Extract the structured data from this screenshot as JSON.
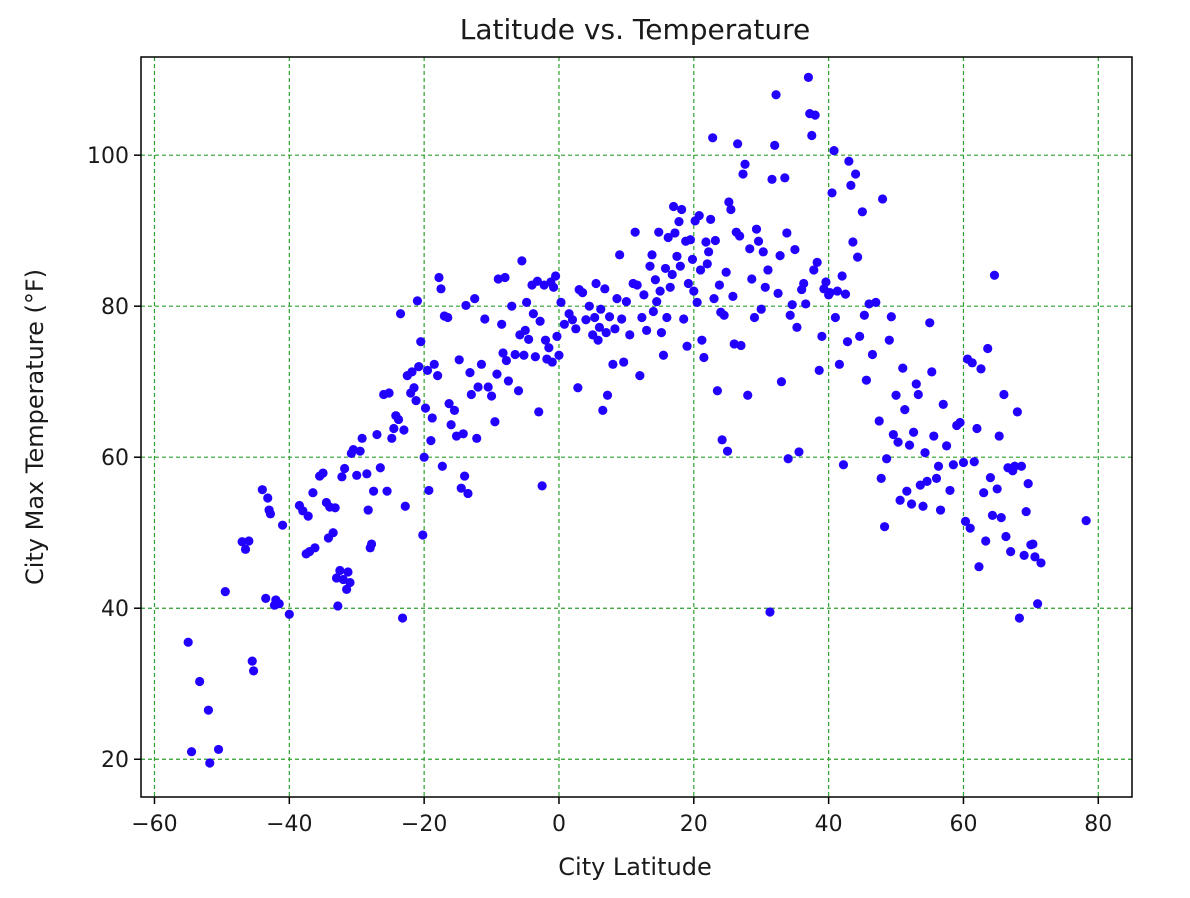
{
  "chart_data": {
    "type": "scatter",
    "title": "Latitude vs. Temperature",
    "xlabel": "City Latitude",
    "ylabel": "City Max Temperature (°F)",
    "xlim": [
      -62,
      85
    ],
    "ylim": [
      15,
      113
    ],
    "xticks": [
      -60,
      -40,
      -20,
      0,
      20,
      40,
      60,
      80
    ],
    "yticks": [
      20,
      40,
      60,
      80,
      100
    ],
    "xtick_labels": [
      "−60",
      "−40",
      "−20",
      "0",
      "20",
      "40",
      "60",
      "80"
    ],
    "ytick_labels": [
      "20",
      "40",
      "60",
      "80",
      "100"
    ],
    "grid": true,
    "grid_color": "#2ca02c",
    "marker_color": "#2200ff",
    "points": [
      [
        -55,
        35.5
      ],
      [
        -54.5,
        21
      ],
      [
        -53.3,
        30.3
      ],
      [
        -52,
        26.5
      ],
      [
        -51.8,
        19.5
      ],
      [
        -50.5,
        21.3
      ],
      [
        -49.5,
        42.2
      ],
      [
        -47,
        48.8
      ],
      [
        -46.5,
        47.8
      ],
      [
        -46,
        48.9
      ],
      [
        -45.5,
        33
      ],
      [
        -45.3,
        31.7
      ],
      [
        -44,
        55.7
      ],
      [
        -43.5,
        41.3
      ],
      [
        -43.2,
        54.6
      ],
      [
        -43,
        53
      ],
      [
        -42.8,
        52.5
      ],
      [
        -42.2,
        40.4
      ],
      [
        -42,
        41.1
      ],
      [
        -41.5,
        40.6
      ],
      [
        -41,
        51
      ],
      [
        -40,
        39.2
      ],
      [
        -38.5,
        53.6
      ],
      [
        -38,
        52.9
      ],
      [
        -37.5,
        47.2
      ],
      [
        -37.2,
        52.2
      ],
      [
        -37,
        47.5
      ],
      [
        -36.5,
        55.3
      ],
      [
        -36.2,
        48
      ],
      [
        -35.5,
        57.5
      ],
      [
        -35,
        57.9
      ],
      [
        -34.5,
        54
      ],
      [
        -34.2,
        49.3
      ],
      [
        -34,
        53.4
      ],
      [
        -33.5,
        50
      ],
      [
        -33.2,
        53.3
      ],
      [
        -33,
        44
      ],
      [
        -32.8,
        40.3
      ],
      [
        -32.5,
        45
      ],
      [
        -32.2,
        57.4
      ],
      [
        -32,
        43.8
      ],
      [
        -31.8,
        58.5
      ],
      [
        -31.5,
        42.5
      ],
      [
        -31.3,
        44.8
      ],
      [
        -31,
        43.4
      ],
      [
        -30.8,
        60.5
      ],
      [
        -30.5,
        61
      ],
      [
        -30,
        57.6
      ],
      [
        -29.5,
        60.8
      ],
      [
        -29.2,
        62.5
      ],
      [
        -28.5,
        57.8
      ],
      [
        -28.3,
        53
      ],
      [
        -28,
        48
      ],
      [
        -27.8,
        48.5
      ],
      [
        -27.5,
        55.5
      ],
      [
        -27,
        63
      ],
      [
        -26.5,
        58.6
      ],
      [
        -26,
        68.3
      ],
      [
        -25.5,
        55.5
      ],
      [
        -25.2,
        68.5
      ],
      [
        -24.8,
        62.5
      ],
      [
        -24.5,
        63.8
      ],
      [
        -24.2,
        65.5
      ],
      [
        -23.8,
        65
      ],
      [
        -23.5,
        79
      ],
      [
        -23.2,
        38.7
      ],
      [
        -23,
        63.6
      ],
      [
        -22.8,
        53.5
      ],
      [
        -22.5,
        70.8
      ],
      [
        -22,
        68.5
      ],
      [
        -21.8,
        71.3
      ],
      [
        -21.5,
        69.2
      ],
      [
        -21.2,
        67.5
      ],
      [
        -21,
        80.7
      ],
      [
        -20.8,
        72
      ],
      [
        -20.5,
        75.3
      ],
      [
        -20.2,
        49.7
      ],
      [
        -20,
        60
      ],
      [
        -19.8,
        66.5
      ],
      [
        -19.5,
        71.5
      ],
      [
        -19.3,
        55.6
      ],
      [
        -19,
        62.2
      ],
      [
        -18.8,
        65.2
      ],
      [
        -18.5,
        72.3
      ],
      [
        -18,
        70.8
      ],
      [
        -17.8,
        83.8
      ],
      [
        -17.5,
        82.3
      ],
      [
        -17.3,
        58.8
      ],
      [
        -17,
        78.7
      ],
      [
        -16.5,
        78.5
      ],
      [
        -16.3,
        67.1
      ],
      [
        -16,
        64.3
      ],
      [
        -15.5,
        66.2
      ],
      [
        -15.2,
        62.8
      ],
      [
        -14.8,
        72.9
      ],
      [
        -14.5,
        55.9
      ],
      [
        -14.2,
        63.1
      ],
      [
        -14,
        57.5
      ],
      [
        -13.8,
        80.1
      ],
      [
        -13.5,
        55.2
      ],
      [
        -13.2,
        71.2
      ],
      [
        -13,
        68.3
      ],
      [
        -12.5,
        81
      ],
      [
        -12.2,
        62.5
      ],
      [
        -12,
        69.3
      ],
      [
        -11.5,
        72.3
      ],
      [
        -11,
        78.3
      ],
      [
        -10.5,
        69.3
      ],
      [
        -10,
        68.1
      ],
      [
        -9.5,
        64.7
      ],
      [
        -9.2,
        71
      ],
      [
        -9,
        83.6
      ],
      [
        -8.5,
        77.6
      ],
      [
        -8.3,
        73.8
      ],
      [
        -8,
        83.8
      ],
      [
        -7.8,
        72.8
      ],
      [
        -7.5,
        70.1
      ],
      [
        -7,
        80
      ],
      [
        -6.5,
        73.6
      ],
      [
        -6,
        68.8
      ],
      [
        -5.8,
        76.2
      ],
      [
        -5.5,
        86
      ],
      [
        -5.2,
        73.5
      ],
      [
        -5,
        76.8
      ],
      [
        -4.8,
        80.5
      ],
      [
        -4.5,
        75.6
      ],
      [
        -4,
        82.8
      ],
      [
        -3.8,
        79
      ],
      [
        -3.5,
        73.3
      ],
      [
        -3.2,
        83.3
      ],
      [
        -3,
        66
      ],
      [
        -2.8,
        78
      ],
      [
        -2.5,
        56.2
      ],
      [
        -2.2,
        82.8
      ],
      [
        -2,
        75.5
      ],
      [
        -1.8,
        73
      ],
      [
        -1.5,
        74.5
      ],
      [
        -1.2,
        83.2
      ],
      [
        -1,
        72.6
      ],
      [
        -0.8,
        82.5
      ],
      [
        -0.5,
        84
      ],
      [
        -0.3,
        76
      ],
      [
        0,
        73.5
      ],
      [
        0.3,
        80.5
      ],
      [
        0.8,
        77.6
      ],
      [
        1.5,
        79
      ],
      [
        2,
        78.2
      ],
      [
        2.5,
        77
      ],
      [
        2.8,
        69.2
      ],
      [
        3,
        82.2
      ],
      [
        3.5,
        81.8
      ],
      [
        4,
        78.2
      ],
      [
        4.5,
        80
      ],
      [
        5,
        76.2
      ],
      [
        5.3,
        78.5
      ],
      [
        5.5,
        83
      ],
      [
        5.8,
        75.5
      ],
      [
        6,
        77.2
      ],
      [
        6.2,
        79.6
      ],
      [
        6.5,
        66.2
      ],
      [
        6.8,
        82.3
      ],
      [
        7,
        76.5
      ],
      [
        7.2,
        68.2
      ],
      [
        7.5,
        78.6
      ],
      [
        8,
        72.3
      ],
      [
        8.3,
        77
      ],
      [
        8.6,
        81
      ],
      [
        9,
        86.8
      ],
      [
        9.3,
        78.3
      ],
      [
        9.6,
        72.6
      ],
      [
        10,
        80.6
      ],
      [
        10.5,
        76.2
      ],
      [
        11,
        83
      ],
      [
        11.3,
        89.8
      ],
      [
        11.6,
        82.8
      ],
      [
        12,
        70.8
      ],
      [
        12.3,
        78.5
      ],
      [
        12.6,
        81.5
      ],
      [
        13,
        76.8
      ],
      [
        13.5,
        85.3
      ],
      [
        13.8,
        86.8
      ],
      [
        14,
        79.3
      ],
      [
        14.3,
        83.5
      ],
      [
        14.5,
        80.6
      ],
      [
        14.8,
        89.8
      ],
      [
        15,
        82
      ],
      [
        15.2,
        76.5
      ],
      [
        15.5,
        73.5
      ],
      [
        15.8,
        85
      ],
      [
        16,
        78.5
      ],
      [
        16.2,
        89.1
      ],
      [
        16.5,
        82.5
      ],
      [
        16.8,
        84.2
      ],
      [
        17,
        93.2
      ],
      [
        17.2,
        89.7
      ],
      [
        17.5,
        86.6
      ],
      [
        17.8,
        91.2
      ],
      [
        18,
        85.3
      ],
      [
        18.2,
        92.8
      ],
      [
        18.5,
        78.3
      ],
      [
        18.8,
        88.6
      ],
      [
        19,
        74.7
      ],
      [
        19.2,
        83
      ],
      [
        19.5,
        88.8
      ],
      [
        19.8,
        86.2
      ],
      [
        20,
        82
      ],
      [
        20.2,
        91.3
      ],
      [
        20.5,
        80.5
      ],
      [
        20.8,
        92
      ],
      [
        21,
        84.8
      ],
      [
        21.2,
        75.5
      ],
      [
        21.5,
        73.2
      ],
      [
        21.8,
        88.5
      ],
      [
        22,
        85.6
      ],
      [
        22.2,
        87.2
      ],
      [
        22.5,
        91.5
      ],
      [
        22.8,
        102.3
      ],
      [
        23,
        81
      ],
      [
        23.2,
        88.7
      ],
      [
        23.5,
        68.8
      ],
      [
        23.8,
        82.8
      ],
      [
        24,
        79.2
      ],
      [
        24.2,
        62.3
      ],
      [
        24.5,
        78.8
      ],
      [
        24.8,
        84.5
      ],
      [
        25,
        60.8
      ],
      [
        25.2,
        93.8
      ],
      [
        25.5,
        92.8
      ],
      [
        25.8,
        81.3
      ],
      [
        26,
        75
      ],
      [
        26.3,
        89.8
      ],
      [
        26.5,
        101.5
      ],
      [
        26.8,
        89.3
      ],
      [
        27,
        74.8
      ],
      [
        27.3,
        97.5
      ],
      [
        27.6,
        98.8
      ],
      [
        28,
        68.2
      ],
      [
        28.3,
        87.6
      ],
      [
        28.6,
        83.6
      ],
      [
        29,
        78.5
      ],
      [
        29.3,
        90.2
      ],
      [
        29.6,
        88.6
      ],
      [
        30,
        79.6
      ],
      [
        30.3,
        87.2
      ],
      [
        30.6,
        82.5
      ],
      [
        31,
        84.8
      ],
      [
        31.3,
        39.5
      ],
      [
        31.6,
        96.8
      ],
      [
        32,
        101.3
      ],
      [
        32.2,
        108
      ],
      [
        32.5,
        81.7
      ],
      [
        32.8,
        86.7
      ],
      [
        33,
        70
      ],
      [
        33.5,
        97
      ],
      [
        33.8,
        89.7
      ],
      [
        34,
        59.8
      ],
      [
        34.3,
        78.8
      ],
      [
        34.6,
        80.2
      ],
      [
        35,
        87.5
      ],
      [
        35.3,
        77.2
      ],
      [
        35.6,
        60.7
      ],
      [
        36,
        82.2
      ],
      [
        36.3,
        83
      ],
      [
        36.6,
        80.3
      ],
      [
        37,
        110.3
      ],
      [
        37.2,
        105.5
      ],
      [
        37.5,
        102.6
      ],
      [
        37.8,
        84.8
      ],
      [
        38,
        105.3
      ],
      [
        38.3,
        85.8
      ],
      [
        38.6,
        71.5
      ],
      [
        39,
        76
      ],
      [
        39.3,
        82.3
      ],
      [
        39.6,
        83.2
      ],
      [
        40,
        81.5
      ],
      [
        40.2,
        81.8
      ],
      [
        40.5,
        95
      ],
      [
        40.8,
        100.6
      ],
      [
        41,
        78.5
      ],
      [
        41.3,
        82
      ],
      [
        41.6,
        72.3
      ],
      [
        42,
        84
      ],
      [
        42.2,
        59
      ],
      [
        42.5,
        81.6
      ],
      [
        42.8,
        75.3
      ],
      [
        43,
        99.2
      ],
      [
        43.3,
        96
      ],
      [
        43.6,
        88.5
      ],
      [
        44,
        97.5
      ],
      [
        44.3,
        86.5
      ],
      [
        44.6,
        76
      ],
      [
        45,
        92.5
      ],
      [
        45.3,
        78.8
      ],
      [
        45.6,
        70.2
      ],
      [
        46,
        80.3
      ],
      [
        46.5,
        73.6
      ],
      [
        47,
        80.5
      ],
      [
        47.5,
        64.8
      ],
      [
        47.8,
        57.2
      ],
      [
        48,
        94.2
      ],
      [
        48.3,
        50.8
      ],
      [
        48.6,
        59.8
      ],
      [
        49,
        75.5
      ],
      [
        49.3,
        78.6
      ],
      [
        49.6,
        63
      ],
      [
        50,
        68.2
      ],
      [
        50.3,
        62
      ],
      [
        50.6,
        54.3
      ],
      [
        51,
        71.8
      ],
      [
        51.3,
        66.3
      ],
      [
        51.6,
        55.5
      ],
      [
        52,
        61.6
      ],
      [
        52.3,
        53.8
      ],
      [
        52.6,
        63.3
      ],
      [
        53,
        69.7
      ],
      [
        53.3,
        68.3
      ],
      [
        53.6,
        56.3
      ],
      [
        54,
        53.5
      ],
      [
        54.3,
        60.6
      ],
      [
        54.6,
        56.8
      ],
      [
        55,
        77.8
      ],
      [
        55.3,
        71.3
      ],
      [
        55.6,
        62.8
      ],
      [
        56,
        57.2
      ],
      [
        56.3,
        58.8
      ],
      [
        56.6,
        53
      ],
      [
        57,
        67
      ],
      [
        57.5,
        61.5
      ],
      [
        58,
        55.6
      ],
      [
        58.5,
        59
      ],
      [
        59,
        64.2
      ],
      [
        59.5,
        64.6
      ],
      [
        60,
        59.3
      ],
      [
        60.3,
        51.5
      ],
      [
        60.6,
        73
      ],
      [
        61,
        50.6
      ],
      [
        61.3,
        72.5
      ],
      [
        61.6,
        59.4
      ],
      [
        62,
        63.8
      ],
      [
        62.3,
        45.5
      ],
      [
        62.6,
        71.7
      ],
      [
        63,
        55.3
      ],
      [
        63.3,
        48.9
      ],
      [
        63.6,
        74.4
      ],
      [
        64,
        57.3
      ],
      [
        64.3,
        52.3
      ],
      [
        64.6,
        84.1
      ],
      [
        65,
        55.8
      ],
      [
        65.3,
        62.8
      ],
      [
        65.6,
        52
      ],
      [
        66,
        68.3
      ],
      [
        66.3,
        49.5
      ],
      [
        66.6,
        58.6
      ],
      [
        67,
        47.5
      ],
      [
        67.3,
        58.2
      ],
      [
        67.6,
        58.8
      ],
      [
        68,
        66
      ],
      [
        68.3,
        38.7
      ],
      [
        68.6,
        58.8
      ],
      [
        69,
        47
      ],
      [
        69.3,
        52.8
      ],
      [
        69.6,
        56.5
      ],
      [
        70,
        48.4
      ],
      [
        70.3,
        48.5
      ],
      [
        70.6,
        46.8
      ],
      [
        71,
        40.6
      ],
      [
        71.5,
        46
      ],
      [
        78.2,
        51.6
      ]
    ]
  }
}
